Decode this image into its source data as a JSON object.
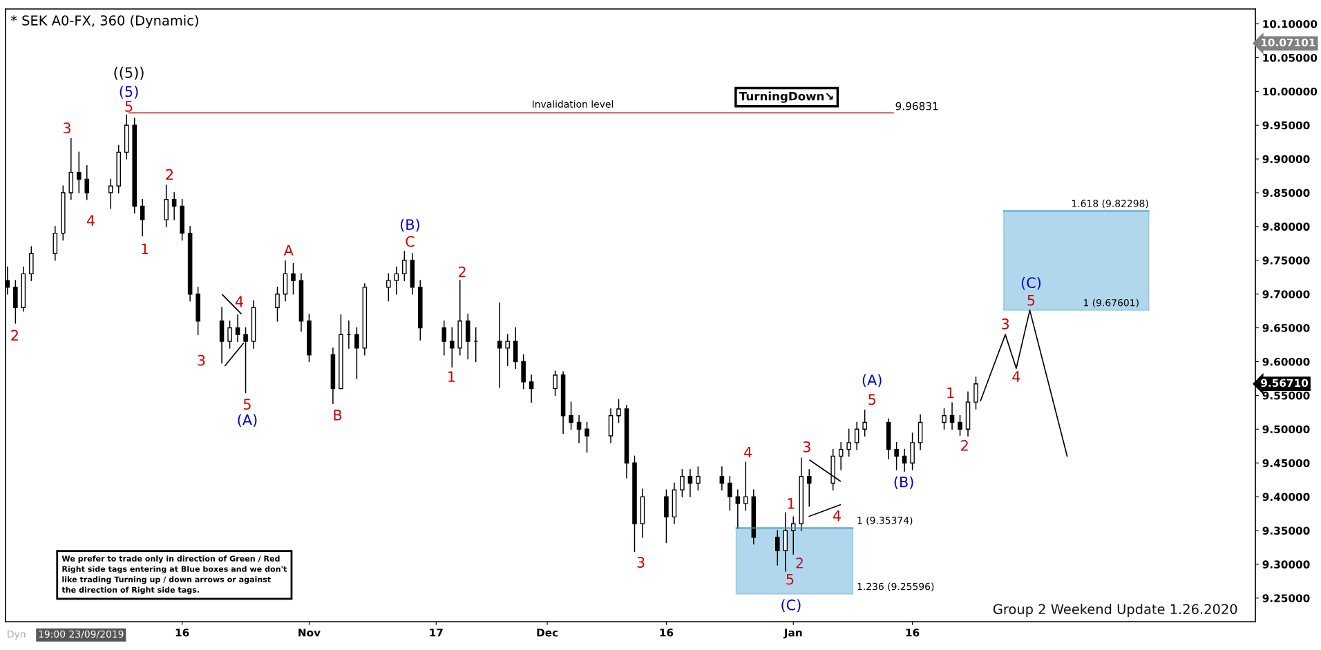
{
  "chart_data": {
    "type": "candlestick",
    "title": "* SEK A0-FX, 360 (Dynamic)",
    "color": "#000000",
    "x": [
      "2019-09-24",
      "2019-09-25",
      "2019-09-26",
      "2019-09-27",
      "2019-09-30",
      "2019-10-01",
      "2019-10-02",
      "2019-10-03",
      "2019-10-04",
      "2019-10-07",
      "2019-10-08",
      "2019-10-09",
      "2019-10-10",
      "2019-10-11",
      "2019-10-14",
      "2019-10-15",
      "2019-10-16",
      "2019-10-17",
      "2019-10-18",
      "2019-10-21",
      "2019-10-22",
      "2019-10-23",
      "2019-10-24",
      "2019-10-25",
      "2019-10-28",
      "2019-10-29",
      "2019-10-30",
      "2019-10-31",
      "2019-11-01",
      "2019-11-04",
      "2019-11-05",
      "2019-11-06",
      "2019-11-07",
      "2019-11-08",
      "2019-11-11",
      "2019-11-12",
      "2019-11-13",
      "2019-11-14",
      "2019-11-15",
      "2019-11-18",
      "2019-11-19",
      "2019-11-20",
      "2019-11-21",
      "2019-11-22",
      "2019-11-25",
      "2019-11-26",
      "2019-11-27",
      "2019-11-28",
      "2019-11-29",
      "2019-12-02",
      "2019-12-03",
      "2019-12-04",
      "2019-12-05",
      "2019-12-06",
      "2019-12-09",
      "2019-12-10",
      "2019-12-11",
      "2019-12-12",
      "2019-12-13",
      "2019-12-16",
      "2019-12-17",
      "2019-12-18",
      "2019-12-19",
      "2019-12-20",
      "2019-12-23",
      "2019-12-24",
      "2019-12-25",
      "2019-12-26",
      "2019-12-27",
      "2019-12-30",
      "2019-12-31",
      "2020-01-01",
      "2020-01-02",
      "2020-01-03",
      "2020-01-06",
      "2020-01-07",
      "2020-01-08",
      "2020-01-09",
      "2020-01-10",
      "2020-01-13",
      "2020-01-14",
      "2020-01-15",
      "2020-01-16",
      "2020-01-17",
      "2020-01-20",
      "2020-01-21",
      "2020-01-22",
      "2020-01-23",
      "2020-01-24"
    ],
    "ohlc": [
      [
        9.72,
        9.74,
        9.7,
        9.71
      ],
      [
        9.71,
        9.72,
        9.657,
        9.68
      ],
      [
        9.68,
        9.74,
        9.675,
        9.73
      ],
      [
        9.73,
        9.77,
        9.72,
        9.76
      ],
      [
        9.76,
        9.8,
        9.75,
        9.79
      ],
      [
        9.79,
        9.86,
        9.78,
        9.85
      ],
      [
        9.85,
        9.93,
        9.84,
        9.88
      ],
      [
        9.88,
        9.91,
        9.85,
        9.87
      ],
      [
        9.87,
        9.89,
        9.84,
        9.85
      ],
      [
        9.85,
        9.87,
        9.827,
        9.86
      ],
      [
        9.86,
        9.92,
        9.85,
        9.91
      ],
      [
        9.91,
        9.965,
        9.9,
        9.95
      ],
      [
        9.95,
        9.96,
        9.82,
        9.83
      ],
      [
        9.83,
        9.84,
        9.786,
        9.81
      ],
      [
        9.81,
        9.861,
        9.8,
        9.84
      ],
      [
        9.84,
        9.85,
        9.81,
        9.83
      ],
      [
        9.83,
        9.84,
        9.78,
        9.79
      ],
      [
        9.79,
        9.8,
        9.69,
        9.7
      ],
      [
        9.7,
        9.71,
        9.64,
        9.66
      ],
      [
        9.66,
        9.68,
        9.598,
        9.63
      ],
      [
        9.63,
        9.66,
        9.62,
        9.65
      ],
      [
        9.65,
        9.669,
        9.63,
        9.64
      ],
      [
        9.64,
        9.65,
        9.554,
        9.63
      ],
      [
        9.63,
        9.69,
        9.62,
        9.68
      ],
      [
        9.68,
        9.71,
        9.66,
        9.7
      ],
      [
        9.7,
        9.749,
        9.69,
        9.73
      ],
      [
        9.73,
        9.745,
        9.7,
        9.72
      ],
      [
        9.72,
        9.73,
        9.645,
        9.66
      ],
      [
        9.66,
        9.67,
        9.6,
        9.61
      ],
      [
        9.61,
        9.62,
        9.538,
        9.56
      ],
      [
        9.56,
        9.669,
        9.56,
        9.64
      ],
      [
        9.64,
        9.66,
        9.62,
        9.64
      ],
      [
        9.64,
        9.65,
        9.575,
        9.62
      ],
      [
        9.62,
        9.715,
        9.61,
        9.71
      ],
      [
        9.71,
        9.73,
        9.69,
        9.72
      ],
      [
        9.72,
        9.74,
        9.7,
        9.73
      ],
      [
        9.73,
        9.763,
        9.72,
        9.75
      ],
      [
        9.75,
        9.76,
        9.7,
        9.71
      ],
      [
        9.71,
        9.72,
        9.632,
        9.65
      ],
      [
        9.65,
        9.66,
        9.61,
        9.63
      ],
      [
        9.63,
        9.65,
        9.592,
        9.62
      ],
      [
        9.62,
        9.72,
        9.61,
        9.66
      ],
      [
        9.66,
        9.67,
        9.604,
        9.63
      ],
      [
        9.63,
        9.65,
        9.6,
        9.63
      ],
      [
        9.63,
        9.687,
        9.562,
        9.62
      ],
      [
        9.62,
        9.64,
        9.594,
        9.63
      ],
      [
        9.63,
        9.65,
        9.59,
        9.6
      ],
      [
        9.6,
        9.61,
        9.56,
        9.57
      ],
      [
        9.57,
        9.58,
        9.54,
        9.56
      ],
      [
        9.56,
        9.586,
        9.55,
        9.58
      ],
      [
        9.58,
        9.585,
        9.494,
        9.52
      ],
      [
        9.52,
        9.54,
        9.5,
        9.51
      ],
      [
        9.51,
        9.52,
        9.48,
        9.5
      ],
      [
        9.5,
        9.51,
        9.466,
        9.49
      ],
      [
        9.49,
        9.53,
        9.48,
        9.52
      ],
      [
        9.52,
        9.544,
        9.51,
        9.53
      ],
      [
        9.53,
        9.535,
        9.428,
        9.45
      ],
      [
        9.45,
        9.46,
        9.319,
        9.36
      ],
      [
        9.36,
        9.411,
        9.34,
        9.4
      ],
      [
        9.4,
        9.41,
        9.332,
        9.37
      ],
      [
        9.37,
        9.42,
        9.36,
        9.41
      ],
      [
        9.41,
        9.44,
        9.4,
        9.43
      ],
      [
        9.43,
        9.44,
        9.4,
        9.42
      ],
      [
        9.42,
        9.444,
        9.41,
        9.43
      ],
      [
        9.43,
        9.444,
        9.41,
        9.42
      ],
      [
        9.42,
        9.43,
        9.38,
        9.4
      ],
      [
        9.4,
        9.41,
        9.353,
        9.39
      ],
      [
        9.39,
        9.451,
        9.38,
        9.4
      ],
      [
        9.4,
        9.41,
        9.33,
        9.34
      ],
      [
        9.34,
        9.35,
        9.299,
        9.32
      ],
      [
        9.32,
        9.376,
        9.29,
        9.35
      ],
      [
        9.35,
        9.37,
        9.315,
        9.36
      ],
      [
        9.36,
        9.457,
        9.35,
        9.43
      ],
      [
        9.43,
        9.44,
        9.386,
        9.42
      ],
      [
        9.42,
        9.47,
        9.41,
        9.46
      ],
      [
        9.46,
        9.48,
        9.44,
        9.47
      ],
      [
        9.47,
        9.5,
        9.46,
        9.48
      ],
      [
        9.48,
        9.51,
        9.47,
        9.5
      ],
      [
        9.5,
        9.528,
        9.49,
        9.51
      ],
      [
        9.51,
        9.515,
        9.456,
        9.47
      ],
      [
        9.47,
        9.48,
        9.44,
        9.46
      ],
      [
        9.46,
        9.47,
        9.438,
        9.45
      ],
      [
        9.45,
        9.494,
        9.44,
        9.48
      ],
      [
        9.48,
        9.521,
        9.47,
        9.51
      ],
      [
        9.51,
        9.53,
        9.5,
        9.52
      ],
      [
        9.52,
        9.539,
        9.5,
        9.51
      ],
      [
        9.51,
        9.52,
        9.491,
        9.5
      ],
      [
        9.5,
        9.555,
        9.49,
        9.54
      ],
      [
        9.54,
        9.577,
        9.53,
        9.567
      ]
    ],
    "series": [
      {
        "type": "line",
        "color": "#3d9ad1",
        "x": [
          "2019-12-24T19:00",
          "2020-01-01T04:00",
          "2020-01-08T12:00"
        ],
        "values": [
          9.35374,
          9.35374,
          9.35374
        ],
        "lower": [
          9.25596,
          9.25596,
          9.25596
        ],
        "upper": [
          9.35374,
          9.35374,
          9.35374
        ]
      },
      {
        "type": "line",
        "color": "#3d9ad1",
        "x": [
          "2020-01-27T12:00",
          "2020-02-05T04:00",
          "2020-02-14T19:00"
        ],
        "values": [
          9.82298,
          9.82298,
          9.82298
        ],
        "lower": [
          9.67601,
          9.67601,
          9.67601
        ],
        "upper": [
          9.82298,
          9.82298,
          9.82298
        ]
      },
      {
        "type": "line",
        "color": "#cc3333",
        "x": [
          "2019-10-09T07:00",
          "2020-01-13T14:00"
        ],
        "values": [
          9.96831,
          9.96831
        ]
      },
      {
        "type": "line",
        "color": "#000000",
        "x": [
          "2020-01-24T14:00",
          "2020-01-27T17:00",
          "2020-01-29T02:00",
          "2020-01-30T19:00",
          "2020-02-04T12:00"
        ],
        "values": [
          9.542,
          9.64,
          9.59,
          9.676,
          9.46
        ]
      },
      {
        "type": "line",
        "color": "#000000",
        "x": [
          "2019-10-21T02:00",
          "2019-10-23T10:00"
        ],
        "values": [
          9.699,
          9.671
        ]
      },
      {
        "type": "line",
        "color": "#000000",
        "x": [
          "2019-10-21T10:00",
          "2019-10-23T17:00"
        ],
        "values": [
          9.594,
          9.627
        ]
      },
      {
        "type": "line",
        "color": "#000000",
        "x": [
          "2020-01-03T02:00",
          "2020-01-06T22:00"
        ],
        "values": [
          9.454,
          9.423
        ]
      },
      {
        "type": "line",
        "color": "#000000",
        "x": [
          "2020-01-03T00:00",
          "2020-01-06T22:00"
        ],
        "values": [
          9.371,
          9.388
        ]
      }
    ],
    "xlim": [
      "2019-09-23T18:00",
      "2020-02-28T05:00"
    ],
    "xticks": [
      {
        "value": "2019-10-16",
        "label": "16"
      },
      {
        "value": "2019-11-01",
        "label": "Nov"
      },
      {
        "value": "2019-11-17",
        "label": "17"
      },
      {
        "value": "2019-12-01",
        "label": "Dec"
      },
      {
        "value": "2019-12-16",
        "label": "16"
      },
      {
        "value": "2020-01-01",
        "label": "Jan"
      },
      {
        "value": "2020-01-16",
        "label": "16"
      }
    ],
    "ylim": [
      9.215,
      10.122
    ],
    "yticks": [
      {
        "value": 9.25,
        "label": "9.25000"
      },
      {
        "value": 9.3,
        "label": "9.30000"
      },
      {
        "value": 9.35,
        "label": "9.35000"
      },
      {
        "value": 9.4,
        "label": "9.40000"
      },
      {
        "value": 9.45,
        "label": "9.45000"
      },
      {
        "value": 9.5,
        "label": "9.50000"
      },
      {
        "value": 9.55,
        "label": "9.55000"
      },
      {
        "value": 9.6,
        "label": "9.60000"
      },
      {
        "value": 9.65,
        "label": "9.65000"
      },
      {
        "value": 9.7,
        "label": "9.70000"
      },
      {
        "value": 9.75,
        "label": "9.75000"
      },
      {
        "value": 9.8,
        "label": "9.80000"
      },
      {
        "value": 9.85,
        "label": "9.85000"
      },
      {
        "value": 9.9,
        "label": "9.90000"
      },
      {
        "value": 9.95,
        "label": "9.95000"
      },
      {
        "value": 10.0,
        "label": "10.00000"
      },
      {
        "value": 10.05,
        "label": "10.05000"
      },
      {
        "value": 10.1,
        "label": "10.10000"
      }
    ],
    "annotations": [
      "((5))",
      "(5)",
      "5",
      "3",
      "4",
      "2",
      "1",
      "2",
      "3",
      "4",
      "5",
      "(A)",
      "A",
      "B",
      "(B)",
      "C",
      "1",
      "2",
      "3",
      "4",
      "1",
      "5",
      "(C)",
      "2",
      "3",
      "4",
      "(A)",
      "5",
      "(B)",
      "1",
      "2",
      "3",
      "4",
      "(C)",
      "5",
      "Invalidation level",
      {
        "text": "9.96831",
        "x": "2020-01-13T14:00",
        "y": 9.96831
      },
      {
        "text": "1 (9.35374)",
        "x": "2020-01-08T12:00",
        "y": 9.35374
      },
      {
        "text": "1.236 (9.25596)",
        "x": "2020-01-08T12:00",
        "y": 9.25596
      },
      {
        "text": "1.618 (9.82298)",
        "x": "2020-02-14T19:00",
        "y": 9.82298
      },
      {
        "text": "1 (9.67601)",
        "x": "2020-02-14T19:00",
        "y": 9.67601
      },
      "10.07101",
      "9.56710",
      "TurningDown↘",
      "We prefer to trade only in direction of Green / Red\nRight side tags entering at Blue boxes and we don't\nlike trading Turning up / down arrows or against\nthe direction of Right side tags.",
      "Group 2 Weekend Update 1.26.2020",
      "19:00 23/09/2019",
      "Dyn"
    ]
  }
}
